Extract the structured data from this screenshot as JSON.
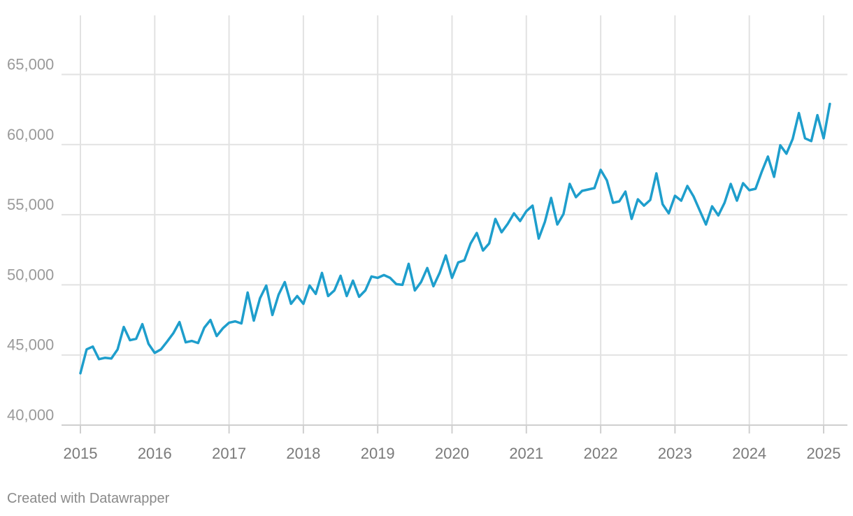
{
  "footer": {
    "credit": "Created with Datawrapper"
  },
  "colors": {
    "line": "#1e9ecc",
    "grid": "#e2e2e2",
    "tick_text": "#9a9a9a",
    "x_tick_text": "#7a7a7a"
  },
  "chart_data": {
    "type": "line",
    "title": "",
    "xlabel": "",
    "ylabel": "",
    "grid": true,
    "ylim": [
      40000,
      68000
    ],
    "xlim": [
      2015,
      2025.25
    ],
    "y_ticks": [
      40000,
      45000,
      50000,
      55000,
      60000,
      65000
    ],
    "y_tick_labels": [
      "40,000",
      "45,000",
      "50,000",
      "55,000",
      "60,000",
      "65,000"
    ],
    "x_ticks": [
      2015,
      2016,
      2017,
      2018,
      2019,
      2020,
      2021,
      2022,
      2023,
      2024,
      2025
    ],
    "x_tick_labels": [
      "2015",
      "2016",
      "2017",
      "2018",
      "2019",
      "2020",
      "2021",
      "2022",
      "2023",
      "2024",
      "2025"
    ],
    "series": [
      {
        "x_start": "2015-01",
        "frequency": "monthly",
        "values": [
          43700,
          45400,
          45600,
          44700,
          44800,
          44750,
          45400,
          47000,
          46050,
          46150,
          47200,
          45800,
          45150,
          45400,
          45950,
          46550,
          47350,
          45900,
          46000,
          45850,
          46950,
          47500,
          46350,
          46900,
          47300,
          47400,
          47250,
          49450,
          47450,
          49050,
          49950,
          47850,
          49300,
          50200,
          48650,
          49200,
          48650,
          49950,
          49350,
          50850,
          49200,
          49600,
          50650,
          49200,
          50300,
          49150,
          49600,
          50600,
          50500,
          50700,
          50500,
          50050,
          50000,
          51500,
          49600,
          50200,
          51200,
          49900,
          50850,
          52100,
          50500,
          51600,
          51750,
          52950,
          53700,
          52450,
          52950,
          54700,
          53750,
          54350,
          55100,
          54550,
          55250,
          55650,
          53300,
          54500,
          56200,
          54300,
          55050,
          57200,
          56250,
          56700,
          56800,
          56900,
          58200,
          57450,
          55850,
          55950,
          56650,
          54700,
          56100,
          55650,
          56050,
          57950,
          55750,
          55100,
          56350,
          56000,
          57050,
          56300,
          55300,
          54300,
          55600,
          54950,
          55850,
          57200,
          56000,
          57250,
          56750,
          56850,
          58050,
          59150,
          57700,
          59950,
          59350,
          60400,
          62250,
          60450,
          60250,
          62100,
          60450,
          62900
        ]
      }
    ]
  }
}
